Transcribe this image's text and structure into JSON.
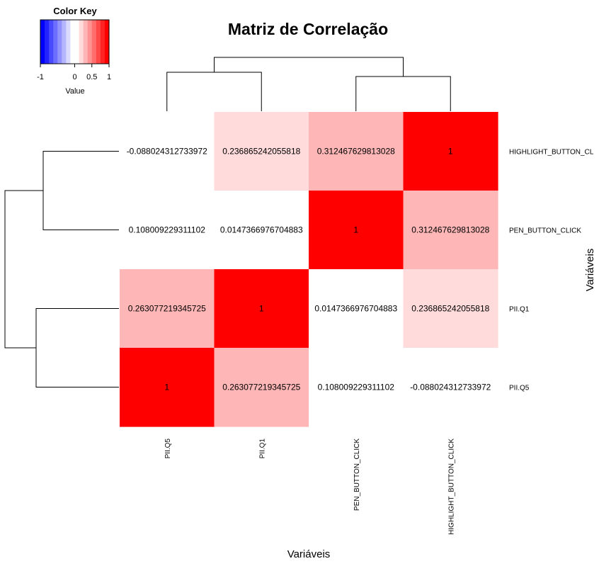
{
  "chart_data": {
    "type": "heatmap",
    "title": "Matriz de Correlação",
    "xlabel": "Variáveis",
    "ylabel": "Variáveis",
    "columns": [
      "PII.Q5",
      "PII.Q1",
      "PEN_BUTTON_CLICK",
      "HIGHLIGHT_BUTTON_CLICK"
    ],
    "rows": [
      "HIGHLIGHT_BUTTON_CL",
      "PEN_BUTTON_CLICK",
      "PII.Q1",
      "PII.Q5"
    ],
    "values": [
      [
        -0.088024312733972,
        0.236865242055818,
        0.312467629813028,
        1
      ],
      [
        0.108009229311102,
        0.0147366976704883,
        1,
        0.312467629813028
      ],
      [
        0.263077219345725,
        1,
        0.0147366976704883,
        0.236865242055818
      ],
      [
        1,
        0.263077219345725,
        0.108009229311102,
        -0.088024312733972
      ]
    ],
    "cell_labels": [
      [
        "-0.088024312733972",
        "0.236865242055818",
        "0.312467629813028",
        "1"
      ],
      [
        "0.108009229311102",
        "0.0147366976704883",
        "1",
        "0.312467629813028"
      ],
      [
        "0.263077219345725",
        "1",
        "0.0147366976704883",
        "0.236865242055818"
      ],
      [
        "1",
        "0.263077219345725",
        "0.108009229311102",
        "-0.088024312733972"
      ]
    ],
    "scale": {
      "min": -1,
      "max": 1,
      "low_color": "#0000ff",
      "mid_color": "#ffffff",
      "high_color": "#ff0000"
    },
    "legend": {
      "title": "Color Key",
      "value_label": "Value",
      "ticks": [
        "-1",
        "0",
        "0.5",
        "1"
      ],
      "placement": "top-left"
    },
    "dendrogram": {
      "columns": "((PII.Q5, PII.Q1), (PEN_BUTTON_CLICK, HIGHLIGHT_BUTTON_CLICK))",
      "rows": "((HIGHLIGHT_BUTTON_CL, PEN_BUTTON_CLICK), (PII.Q1, PII.Q5))"
    }
  }
}
